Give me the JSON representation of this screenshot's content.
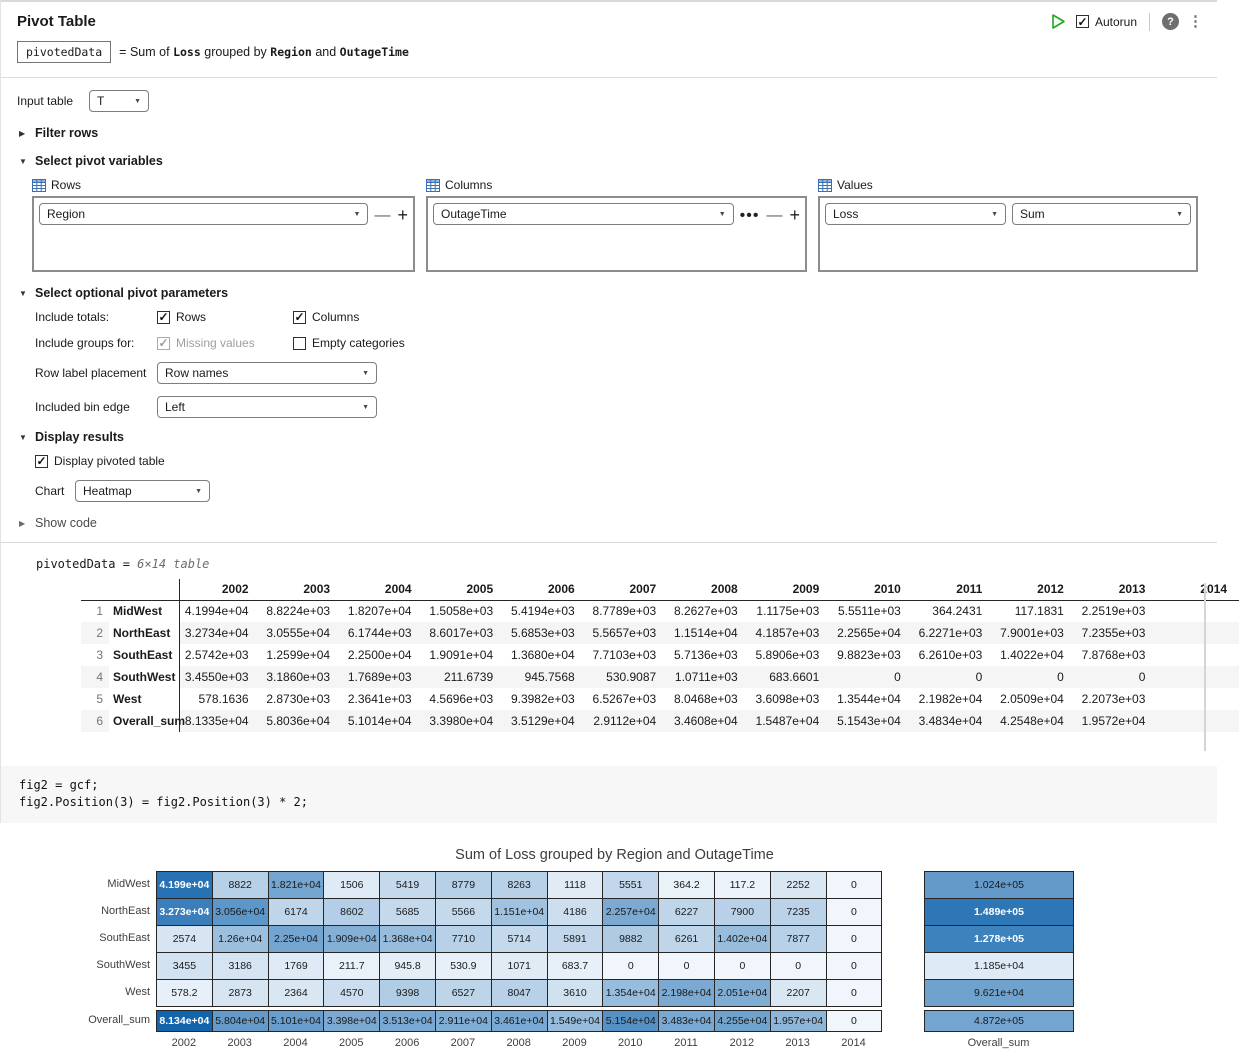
{
  "header": {
    "title": "Pivot Table",
    "autorun_label": "Autorun"
  },
  "summary": {
    "var": "pivotedData",
    "eq": "=",
    "prefix": "Sum of",
    "var1": "Loss",
    "mid": "grouped by",
    "var2": "Region",
    "conj": "and",
    "var3": "OutageTime"
  },
  "controls": {
    "input_table_label": "Input table",
    "input_table_value": "T",
    "filter_rows_label": "Filter rows",
    "select_pivot_label": "Select pivot variables",
    "panels": {
      "rows": {
        "label": "Rows",
        "value": "Region"
      },
      "columns": {
        "label": "Columns",
        "value": "OutageTime"
      },
      "values": {
        "label": "Values",
        "var": "Loss",
        "method": "Sum"
      }
    },
    "optional_label": "Select optional pivot parameters",
    "include_totals_label": "Include totals:",
    "totals_rows_label": "Rows",
    "totals_columns_label": "Columns",
    "include_groups_label": "Include groups for:",
    "missing_values_label": "Missing values",
    "empty_categories_label": "Empty categories",
    "row_label_placement_label": "Row label placement",
    "row_label_placement_value": "Row names",
    "bin_edge_label": "Included bin edge",
    "bin_edge_value": "Left",
    "display_results_label": "Display results",
    "display_pivoted_label": "Display pivoted table",
    "chart_label": "Chart",
    "chart_value": "Heatmap",
    "show_code_label": "Show code"
  },
  "output": {
    "var_prefix": "pivotedData = ",
    "var_dims": "6×14 table",
    "table": {
      "years": [
        "2002",
        "2003",
        "2004",
        "2005",
        "2006",
        "2007",
        "2008",
        "2009",
        "2010",
        "2011",
        "2012",
        "2013"
      ],
      "clipped_year": "2014",
      "rows": [
        {
          "num": "1",
          "name": "MidWest",
          "values": [
            "4.1994e+04",
            "8.8224e+03",
            "1.8207e+04",
            "1.5058e+03",
            "5.4194e+03",
            "8.7789e+03",
            "8.2627e+03",
            "1.1175e+03",
            "5.5511e+03",
            "364.2431",
            "117.1831",
            "2.2519e+03"
          ]
        },
        {
          "num": "2",
          "name": "NorthEast",
          "values": [
            "3.2734e+04",
            "3.0555e+04",
            "6.1744e+03",
            "8.6017e+03",
            "5.6853e+03",
            "5.5657e+03",
            "1.1514e+04",
            "4.1857e+03",
            "2.2565e+04",
            "6.2271e+03",
            "7.9001e+03",
            "7.2355e+03"
          ]
        },
        {
          "num": "3",
          "name": "SouthEast",
          "values": [
            "2.5742e+03",
            "1.2599e+04",
            "2.2500e+04",
            "1.9091e+04",
            "1.3680e+04",
            "7.7103e+03",
            "5.7136e+03",
            "5.8906e+03",
            "9.8823e+03",
            "6.2610e+03",
            "1.4022e+04",
            "7.8768e+03"
          ]
        },
        {
          "num": "4",
          "name": "SouthWest",
          "values": [
            "3.4550e+03",
            "3.1860e+03",
            "1.7689e+03",
            "211.6739",
            "945.7568",
            "530.9087",
            "1.0711e+03",
            "683.6601",
            "0",
            "0",
            "0",
            "0"
          ]
        },
        {
          "num": "5",
          "name": "West",
          "values": [
            "578.1636",
            "2.8730e+03",
            "2.3641e+03",
            "4.5696e+03",
            "9.3982e+03",
            "6.5267e+03",
            "8.0468e+03",
            "3.6098e+03",
            "1.3544e+04",
            "2.1982e+04",
            "2.0509e+04",
            "2.2073e+03"
          ]
        },
        {
          "num": "6",
          "name": "Overall_sum",
          "values": [
            "8.1335e+04",
            "5.8036e+04",
            "5.1014e+04",
            "3.3980e+04",
            "3.5129e+04",
            "2.9112e+04",
            "3.4608e+04",
            "1.5487e+04",
            "5.1543e+04",
            "3.4834e+04",
            "4.2548e+04",
            "1.9572e+04"
          ]
        }
      ]
    }
  },
  "code": {
    "lines": [
      "fig2 = gcf;",
      "fig2.Position(3) = fig2.Position(3) * 2;"
    ]
  },
  "chart_data": {
    "type": "heatmap",
    "title": "Sum of Loss grouped by Region and OutageTime",
    "x_labels": [
      "2002",
      "2003",
      "2004",
      "2005",
      "2006",
      "2007",
      "2008",
      "2009",
      "2010",
      "2011",
      "2012",
      "2013",
      "2014"
    ],
    "y_labels": [
      "MidWest",
      "NorthEast",
      "SouthEast",
      "SouthWest",
      "West"
    ],
    "totals_label": "Overall_sum",
    "values": [
      [
        "4.199e+04",
        "8822",
        "1.821e+04",
        "1506",
        "5419",
        "8779",
        "8263",
        "1118",
        "5551",
        "364.2",
        "117.2",
        "2252",
        "0"
      ],
      [
        "3.273e+04",
        "3.056e+04",
        "6174",
        "8602",
        "5685",
        "5566",
        "1.151e+04",
        "4186",
        "2.257e+04",
        "6227",
        "7900",
        "7235",
        "0"
      ],
      [
        "2574",
        "1.26e+04",
        "2.25e+04",
        "1.909e+04",
        "1.368e+04",
        "7710",
        "5714",
        "5891",
        "9882",
        "6261",
        "1.402e+04",
        "7877",
        "0"
      ],
      [
        "3455",
        "3186",
        "1769",
        "211.7",
        "945.8",
        "530.9",
        "1071",
        "683.7",
        "0",
        "0",
        "0",
        "0",
        "0"
      ],
      [
        "578.2",
        "2873",
        "2364",
        "4570",
        "9398",
        "6527",
        "8047",
        "3610",
        "1.354e+04",
        "2.198e+04",
        "2.051e+04",
        "2207",
        "0"
      ]
    ],
    "shades": [
      [
        0.88,
        0.27,
        0.55,
        0.1,
        0.21,
        0.27,
        0.26,
        0.09,
        0.22,
        0.05,
        0.04,
        0.12,
        0.02
      ],
      [
        0.8,
        0.65,
        0.23,
        0.28,
        0.21,
        0.21,
        0.36,
        0.17,
        0.52,
        0.23,
        0.26,
        0.25,
        0.02
      ],
      [
        0.13,
        0.38,
        0.55,
        0.48,
        0.4,
        0.26,
        0.21,
        0.22,
        0.3,
        0.23,
        0.4,
        0.26,
        0.02
      ],
      [
        0.15,
        0.14,
        0.1,
        0.05,
        0.07,
        0.06,
        0.09,
        0.06,
        0.02,
        0.02,
        0.02,
        0.02,
        0.02
      ],
      [
        0.06,
        0.13,
        0.12,
        0.18,
        0.29,
        0.24,
        0.26,
        0.16,
        0.4,
        0.52,
        0.5,
        0.12,
        0.02
      ]
    ],
    "totals_row_values": [
      "8.134e+04",
      "5.804e+04",
      "5.101e+04",
      "3.398e+04",
      "3.513e+04",
      "2.911e+04",
      "3.461e+04",
      "1.549e+04",
      "5.154e+04",
      "3.483e+04",
      "4.255e+04",
      "1.957e+04",
      "0"
    ],
    "totals_row_shades": [
      0.97,
      0.62,
      0.6,
      0.52,
      0.53,
      0.5,
      0.53,
      0.4,
      0.68,
      0.53,
      0.57,
      0.44,
      0.02
    ],
    "totals_col_values": [
      "1.024e+05",
      "1.489e+05",
      "1.278e+05",
      "1.185e+04",
      "9.621e+04"
    ],
    "totals_col_shades": [
      0.62,
      0.85,
      0.78,
      0.1,
      0.57
    ],
    "grand_total_value": "4.872e+05",
    "grand_total_shade": 0.55,
    "colormap": {
      "low": "#f5f9fd",
      "high": "#0b60ab"
    },
    "legend_position": "none",
    "grid": true
  }
}
